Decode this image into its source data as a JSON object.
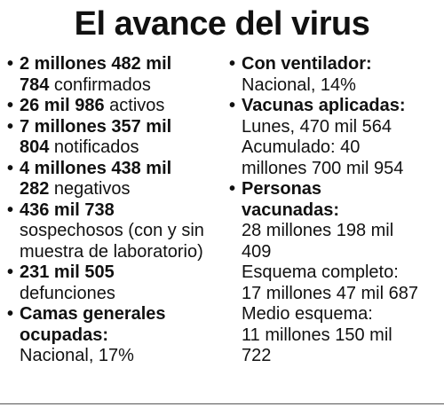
{
  "title": "El avance del virus",
  "left": {
    "i1": {
      "l1": "2 millones 482 mil",
      "l2b": "784",
      "l2n": " confirmados"
    },
    "i2": {
      "b": "26 mil 986",
      "n": " activos"
    },
    "i3": {
      "l1": "7 millones 357 mil",
      "l2b": "804",
      "l2n": " notificados"
    },
    "i4": {
      "l1": "4 millones 438 mil",
      "l2b": "282",
      "l2n": " negativos"
    },
    "i5": {
      "l1": "436 mil 738",
      "l2": "sospechosos (con y sin",
      "l3": "muestra de laboratorio)"
    },
    "i6": {
      "l1": "231 mil 505",
      "l2": "defunciones"
    },
    "i7": {
      "l1": "Camas generales",
      "l2": "ocupadas:",
      "l3": "Nacional, 17%"
    }
  },
  "right": {
    "r1": {
      "l1": "Con ventilador:",
      "l2": "Nacional, 14%"
    },
    "r2": {
      "l1": "Vacunas aplicadas:",
      "l2": "Lunes, 470 mil 564",
      "l3": "Acumulado: 40",
      "l4": "millones 700 mil 954"
    },
    "r3": {
      "l1": "Personas",
      "l2": "vacunadas:",
      "l3": "28 millones 198 mil",
      "l4": "409",
      "l5": "Esquema completo:",
      "l6": "17 millones 47 mil 687",
      "l7": "Medio esquema:",
      "l8": "11 millones 150 mil",
      "l9": "722"
    }
  }
}
